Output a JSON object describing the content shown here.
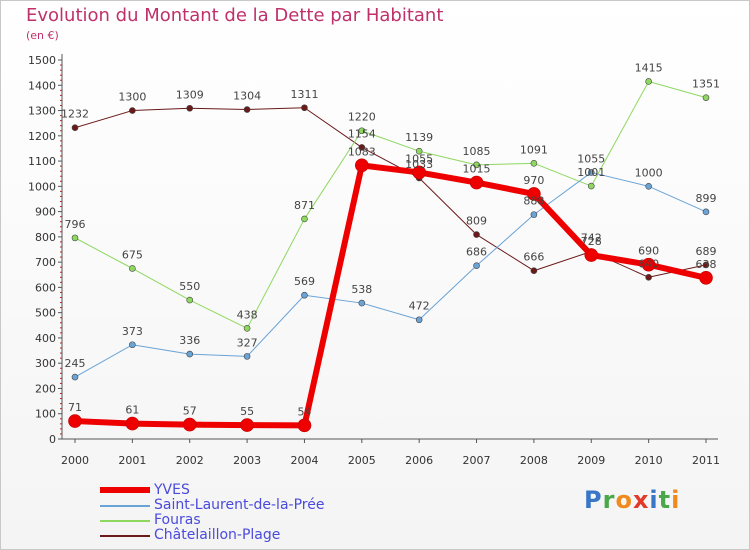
{
  "title": "Evolution du Montant de la Dette par Habitant",
  "subtitle": "(en €)",
  "logo": "Proxiti",
  "chart_data": {
    "type": "line",
    "x": [
      "2000",
      "2001",
      "2002",
      "2003",
      "2004",
      "2005",
      "2006",
      "2007",
      "2008",
      "2009",
      "2010",
      "2011"
    ],
    "ylim": [
      0,
      1500
    ],
    "yticks": [
      0,
      100,
      200,
      300,
      400,
      500,
      600,
      700,
      800,
      900,
      1000,
      1100,
      1200,
      1300,
      1400,
      1500
    ],
    "grid": false,
    "legend_position": "bottom-left",
    "series": [
      {
        "name": "Châtelaillon-Plage",
        "color": "#6b1a1a",
        "width": 1,
        "values": [
          1232,
          1300,
          1309,
          1304,
          1311,
          1154,
          1033,
          809,
          666,
          742,
          640,
          689
        ]
      },
      {
        "name": "Fouras",
        "color": "#8ed860",
        "width": 1,
        "values": [
          796,
          675,
          550,
          438,
          871,
          1220,
          1139,
          1085,
          1091,
          1001,
          1415,
          1351
        ]
      },
      {
        "name": "Saint-Laurent-de-la-Prée",
        "color": "#6aa3d6",
        "width": 1,
        "values": [
          245,
          373,
          336,
          327,
          569,
          538,
          472,
          686,
          888,
          1055,
          1000,
          899
        ]
      },
      {
        "name": "YVES",
        "color": "#ee0000",
        "width": 6,
        "values": [
          71,
          61,
          57,
          55,
          54,
          1083,
          1055,
          1015,
          970,
          728,
          690,
          638
        ]
      }
    ]
  }
}
